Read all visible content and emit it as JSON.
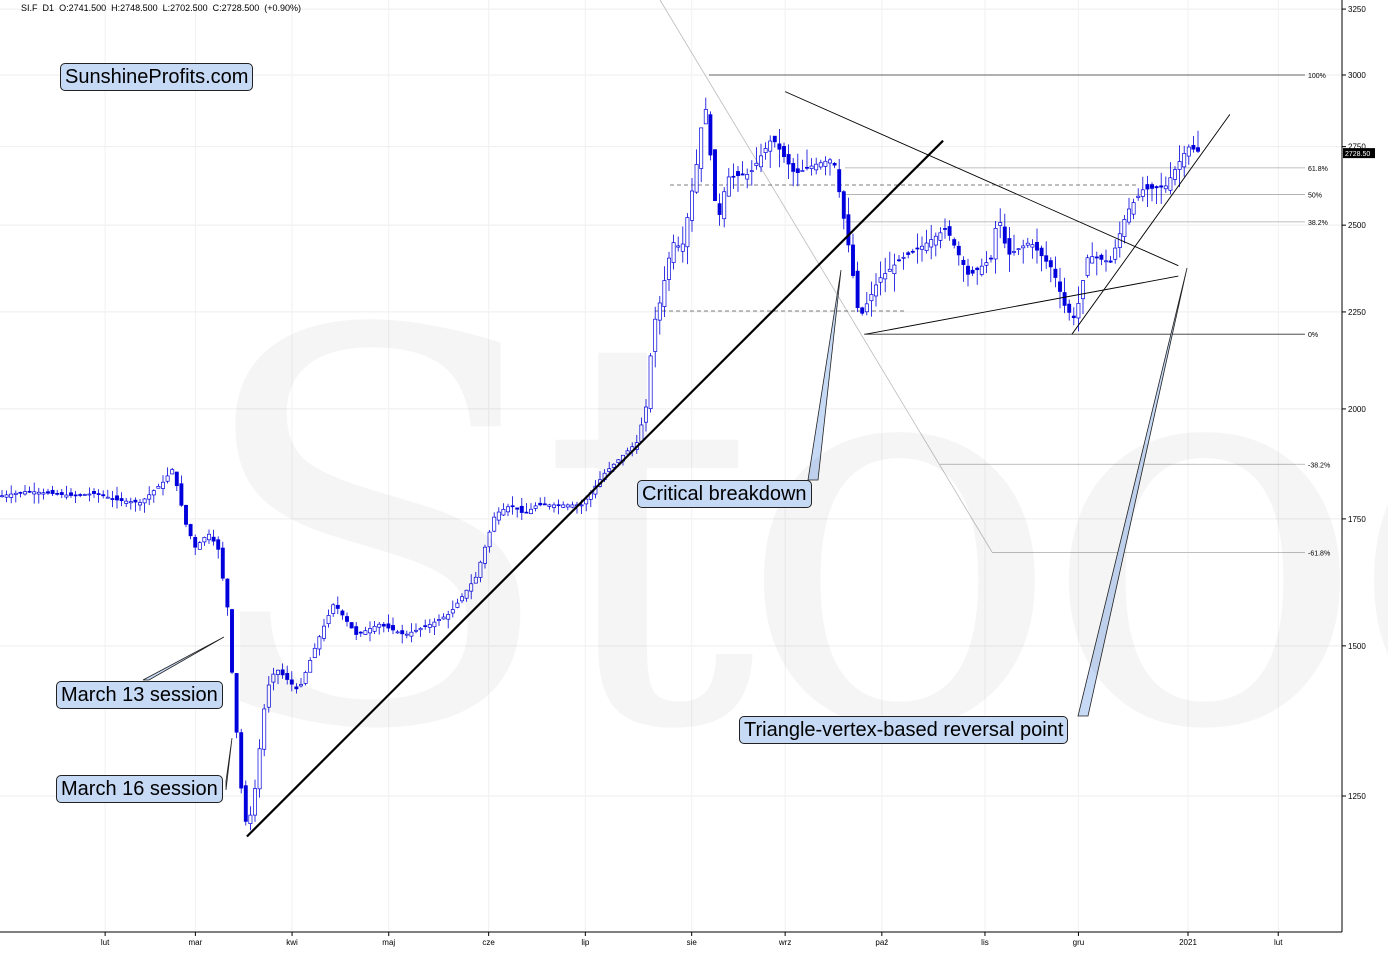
{
  "header": {
    "symbol": "SI.F",
    "interval": "D1",
    "ohlc": "O:2741.500  H:2748.500  L:2702.500  C:2728.500  (+0.90%)"
  },
  "brand": "SunshineProfits.com",
  "watermark": "Stooq",
  "annotations": {
    "march13": "March 13 session",
    "march16": "March 16 session",
    "critical": "Critical breakdown",
    "triangle": "Triangle-vertex-based reversal point"
  },
  "colors": {
    "candle": "#0000dd",
    "label_bg": "#c6d9f5",
    "price_tag_bg": "#000000"
  },
  "chart_data": {
    "type": "candlestick",
    "scale": "log",
    "ylim": [
      1100,
      3250
    ],
    "y_ticks": [
      1250,
      1500,
      1750,
      2000,
      2250,
      2500,
      2750,
      3000,
      3250
    ],
    "x_ticks": [
      "lut",
      "mar",
      "kwi",
      "maj",
      "cze",
      "lip",
      "sie",
      "wrz",
      "paź",
      "lis",
      "gru",
      "2021",
      "lut"
    ],
    "last_price": "2728.50",
    "fibonacci": [
      {
        "label": "100%",
        "value": 3000
      },
      {
        "label": "61.8%",
        "value": 2680
      },
      {
        "label": "50%",
        "value": 2595
      },
      {
        "label": "38.2%",
        "value": 2510
      },
      {
        "label": "0%",
        "value": 2190
      },
      {
        "label": "-38.2%",
        "value": 1870
      },
      {
        "label": "-61.8%",
        "value": 1680
      }
    ],
    "close_path": [
      [
        "2020-01-02",
        1800
      ],
      [
        "2020-01-10",
        1810
      ],
      [
        "2020-01-17",
        1805
      ],
      [
        "2020-01-24",
        1800
      ],
      [
        "2020-01-31",
        1805
      ],
      [
        "2020-02-07",
        1790
      ],
      [
        "2020-02-14",
        1785
      ],
      [
        "2020-02-21",
        1830
      ],
      [
        "2020-02-24",
        1860
      ],
      [
        "2020-02-28",
        1740
      ],
      [
        "2020-03-02",
        1690
      ],
      [
        "2020-03-06",
        1720
      ],
      [
        "2020-03-09",
        1690
      ],
      [
        "2020-03-12",
        1570
      ],
      [
        "2020-03-13",
        1480
      ],
      [
        "2020-03-16",
        1270
      ],
      [
        "2020-03-18",
        1200
      ],
      [
        "2020-03-20",
        1240
      ],
      [
        "2020-03-24",
        1420
      ],
      [
        "2020-03-27",
        1460
      ],
      [
        "2020-04-03",
        1420
      ],
      [
        "2020-04-09",
        1510
      ],
      [
        "2020-04-14",
        1580
      ],
      [
        "2020-04-21",
        1520
      ],
      [
        "2020-04-28",
        1540
      ],
      [
        "2020-05-06",
        1520
      ],
      [
        "2020-05-14",
        1540
      ],
      [
        "2020-05-20",
        1560
      ],
      [
        "2020-05-28",
        1630
      ],
      [
        "2020-06-03",
        1760
      ],
      [
        "2020-06-08",
        1780
      ],
      [
        "2020-06-12",
        1760
      ],
      [
        "2020-06-16",
        1780
      ],
      [
        "2020-06-23",
        1780
      ],
      [
        "2020-06-30",
        1780
      ],
      [
        "2020-07-07",
        1850
      ],
      [
        "2020-07-14",
        1900
      ],
      [
        "2020-07-17",
        1920
      ],
      [
        "2020-07-20",
        2010
      ],
      [
        "2020-07-22",
        2210
      ],
      [
        "2020-07-24",
        2270
      ],
      [
        "2020-07-28",
        2450
      ],
      [
        "2020-07-31",
        2430
      ],
      [
        "2020-08-05",
        2720
      ],
      [
        "2020-08-07",
        2920
      ],
      [
        "2020-08-11",
        2500
      ],
      [
        "2020-08-14",
        2650
      ],
      [
        "2020-08-21",
        2660
      ],
      [
        "2020-08-28",
        2780
      ],
      [
        "2020-09-04",
        2660
      ],
      [
        "2020-09-10",
        2690
      ],
      [
        "2020-09-16",
        2710
      ],
      [
        "2020-09-21",
        2420
      ],
      [
        "2020-09-24",
        2230
      ],
      [
        "2020-09-30",
        2340
      ],
      [
        "2020-10-07",
        2400
      ],
      [
        "2020-10-14",
        2440
      ],
      [
        "2020-10-21",
        2490
      ],
      [
        "2020-10-28",
        2350
      ],
      [
        "2020-11-04",
        2400
      ],
      [
        "2020-11-06",
        2540
      ],
      [
        "2020-11-09",
        2410
      ],
      [
        "2020-11-16",
        2450
      ],
      [
        "2020-11-23",
        2370
      ],
      [
        "2020-11-27",
        2260
      ],
      [
        "2020-11-30",
        2230
      ],
      [
        "2020-12-04",
        2410
      ],
      [
        "2020-12-11",
        2390
      ],
      [
        "2020-12-16",
        2540
      ],
      [
        "2020-12-21",
        2610
      ],
      [
        "2020-12-28",
        2620
      ],
      [
        "2021-01-04",
        2750
      ],
      [
        "2021-01-08",
        2730
      ]
    ],
    "trendlines": [
      {
        "from": [
          "2020-03-18",
          1190
        ],
        "to": [
          "2020-10-20",
          2770
        ]
      },
      {
        "from": [
          "2020-09-26",
          2190
        ],
        "to": [
          "2021-01-01",
          2350
        ]
      },
      {
        "from": [
          "2020-09-01",
          2940
        ],
        "to": [
          "2021-01-01",
          2380
        ]
      },
      {
        "from": [
          "2020-11-29",
          2190
        ],
        "to": [
          "2021-01-17",
          2860
        ]
      }
    ]
  }
}
